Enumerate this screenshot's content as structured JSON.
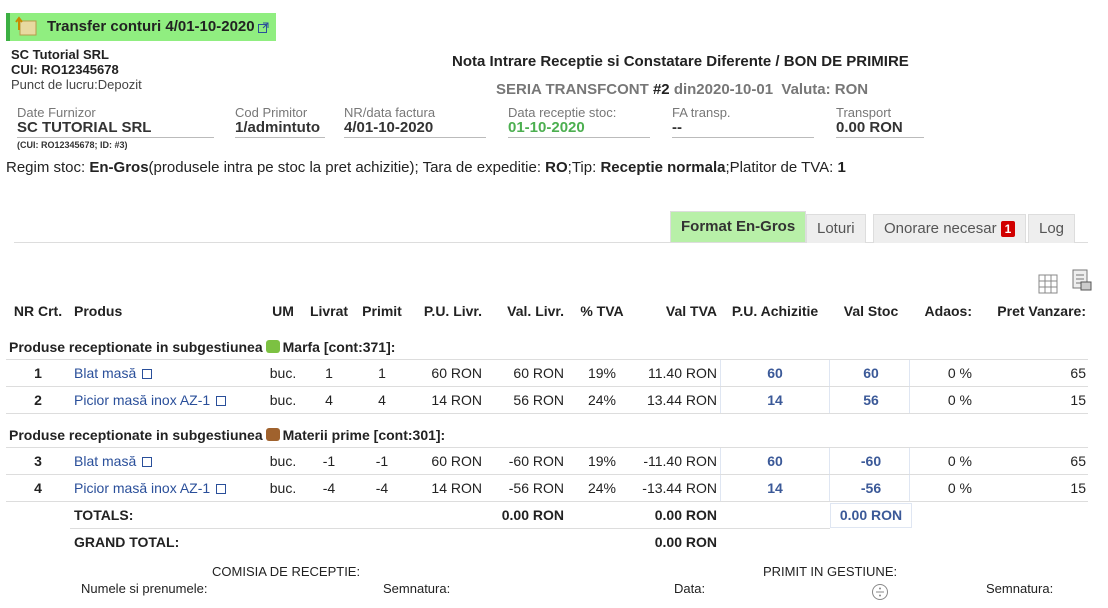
{
  "header": {
    "title": "Transfer conturi 4/01-10-2020"
  },
  "company": {
    "name": "SC Tutorial SRL",
    "cui": "CUI: RO12345678",
    "location": "Punct de lucru:Depozit"
  },
  "document": {
    "title": "Nota Intrare Receptie si Constatare Diferente  / BON DE PRIMIRE",
    "series": "SERIA TRANSFCONT",
    "number": "#2",
    "date": "din2020-10-01",
    "currency": "Valuta: RON"
  },
  "fields": [
    {
      "label": "Date Furnizor",
      "value": "SC TUTORIAL SRL",
      "note": "(CUI: RO12345678; ID: #3)"
    },
    {
      "label": "Cod Primitor",
      "value": "1/admintuto"
    },
    {
      "label": "NR/data factura",
      "value": "4/01-10-2020"
    },
    {
      "label": "Data receptie stoc:",
      "value": "01-10-2020"
    },
    {
      "label": "FA transp.",
      "value": "--"
    },
    {
      "label": "Transport",
      "value": "0.00 RON"
    }
  ],
  "regime": [
    {
      "text": "Regim stoc: ",
      "bold": false
    },
    {
      "text": "En-Gros",
      "bold": true
    },
    {
      "text": "(produsele intra pe stoc la pret achizitie); Tara de expeditie: ",
      "bold": false
    },
    {
      "text": "RO",
      "bold": true
    },
    {
      "text": ";Tip: ",
      "bold": false
    },
    {
      "text": "Receptie normala",
      "bold": true
    },
    {
      "text": ";Platitor de TVA: ",
      "bold": false
    },
    {
      "text": "1",
      "bold": true
    }
  ],
  "tabs": [
    {
      "label": "Format En-Gros",
      "active": true
    },
    {
      "label": "Loturi"
    },
    {
      "label": "Onorare necesar",
      "badge": "1"
    },
    {
      "label": "Log"
    }
  ],
  "table": {
    "headers": [
      "NR Crt.",
      "Produs",
      "UM",
      "Livrat",
      "Primit",
      "P.U. Livr.",
      "Val. Livr.",
      "% TVA",
      "Val TVA",
      "P.U. Achizitie",
      "Val Stoc",
      "Adaos:",
      "Pret Vanzare:"
    ],
    "groups": [
      {
        "prefix": "Produse receptionate in subgestiunea",
        "name": "Marfa [cont:371]:",
        "rows": [
          [
            "1",
            "Blat masă",
            "buc.",
            "1",
            "1",
            "60 RON",
            "60 RON",
            "19%",
            "11.40 RON",
            "60",
            "60",
            "0 %",
            "65"
          ],
          [
            "2",
            "Picior masă inox AZ-1",
            "buc.",
            "4",
            "4",
            "14 RON",
            "56 RON",
            "24%",
            "13.44 RON",
            "14",
            "56",
            "0 %",
            "15"
          ]
        ]
      },
      {
        "prefix": "Produse receptionate in subgestiunea",
        "name": "Materii prime [cont:301]:",
        "rows": [
          [
            "3",
            "Blat masă",
            "buc.",
            "-1",
            "-1",
            "60 RON",
            "-60 RON",
            "19%",
            "-11.40 RON",
            "60",
            "-60",
            "0 %",
            "65"
          ],
          [
            "4",
            "Picior masă inox AZ-1",
            "buc.",
            "-4",
            "-4",
            "14 RON",
            "-56 RON",
            "24%",
            "-13.44 RON",
            "14",
            "-56",
            "0 %",
            "15"
          ]
        ]
      }
    ],
    "totals": {
      "label": "TOTALS:",
      "val_livr": "0.00 RON",
      "val_tva": "0.00 RON",
      "val_stoc": "0.00 RON"
    },
    "grand_total": {
      "label": "GRAND TOTAL:",
      "val_tva": "0.00 RON"
    }
  },
  "footer": {
    "commission": "COMISIA DE RECEPTIE:",
    "received": "PRIMIT IN GESTIUNE:",
    "name": "Numele si prenumele:",
    "signature1": "Semnatura:",
    "date": "Data:",
    "signature2": "Semnatura:"
  }
}
